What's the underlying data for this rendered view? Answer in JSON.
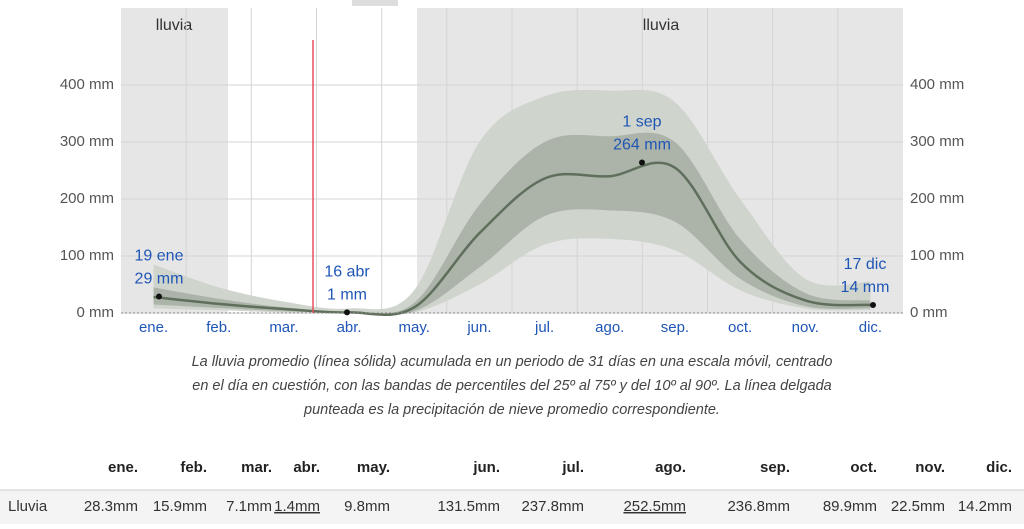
{
  "chart_data": {
    "type": "area",
    "seasons": [
      {
        "label": "lluvia"
      },
      {
        "label": "lluvia"
      }
    ],
    "categories": [
      "ene.",
      "feb.",
      "mar.",
      "abr.",
      "may.",
      "jun.",
      "jul.",
      "ago.",
      "sep.",
      "oct.",
      "nov.",
      "dic."
    ],
    "series": [
      {
        "name": "Lluvia",
        "color": "#5f6f5c",
        "values": [
          28,
          16,
          7,
          1,
          10,
          140,
          236,
          240,
          255,
          90,
          22,
          14
        ]
      }
    ],
    "bands": [
      {
        "color": "#cfd4cd",
        "low": [
          8,
          5,
          1,
          0,
          1,
          50,
          120,
          130,
          110,
          40,
          8,
          5
        ],
        "high": [
          85,
          45,
          20,
          8,
          40,
          300,
          380,
          390,
          370,
          200,
          60,
          55
        ]
      },
      {
        "color": "#acb4a9",
        "low": [
          15,
          9,
          3,
          0,
          3,
          80,
          170,
          180,
          160,
          60,
          12,
          8
        ],
        "high": [
          45,
          25,
          10,
          3,
          18,
          190,
          300,
          310,
          300,
          130,
          35,
          22
        ]
      }
    ],
    "annotations": [
      {
        "label": "19 ene",
        "value": 29,
        "value_label": "29 mm"
      },
      {
        "label": "16 abr",
        "value": 1,
        "value_label": "1 mm"
      },
      {
        "label": "1 sep",
        "value": 264,
        "value_label": "264 mm"
      },
      {
        "label": "17 dic",
        "value": 14,
        "value_label": "14 mm"
      }
    ],
    "ylim": [
      0,
      400
    ],
    "yticks": [
      {
        "value": 0,
        "label": "0 mm"
      },
      {
        "value": 100,
        "label": "100 mm"
      },
      {
        "value": 200,
        "label": "200 mm"
      },
      {
        "value": 300,
        "label": "300 mm"
      },
      {
        "value": 400,
        "label": "400 mm"
      }
    ],
    "caption": [
      "La lluvia promedio (línea sólida) acumulada en un periodo de 31 días en una escala móvil, centrado",
      "en el día en cuestión, con las bandas de percentiles del 25º al 75º y del 10º al 90º. La línea delgada",
      "punteada es la precipitación de nieve promedio correspondiente."
    ]
  },
  "table": {
    "header": [
      "ene.",
      "feb.",
      "mar.",
      "abr.",
      "may.",
      "jun.",
      "jul.",
      "ago.",
      "sep.",
      "oct.",
      "nov.",
      "dic."
    ],
    "rows": [
      [
        "Lluvia",
        "28.3mm",
        "15.9mm",
        "7.1mm",
        "1.4mm",
        "9.8mm",
        "131.5mm",
        "237.8mm",
        "252.5mm",
        "236.8mm",
        "89.9mm",
        "22.5mm",
        "14.2mm"
      ]
    ],
    "underlined": [
      "1.4mm",
      "252.5mm"
    ]
  }
}
